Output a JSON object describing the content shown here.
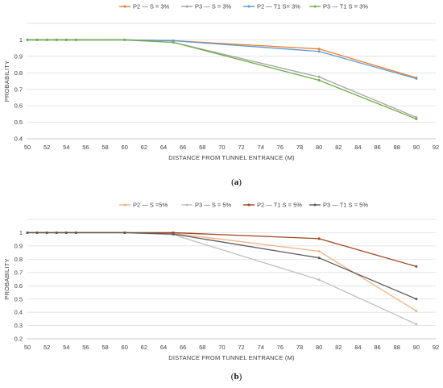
{
  "chart_data": [
    {
      "type": "line",
      "title": "",
      "caption": "(a)",
      "xlabel": "DISTANCE FROM TUNNEL ENTRANCE (M)",
      "ylabel": "PROBABILITY",
      "xlim": [
        50,
        92
      ],
      "ylim": [
        0.4,
        1.1
      ],
      "xticks": [
        50,
        52,
        54,
        56,
        58,
        60,
        62,
        64,
        66,
        68,
        70,
        72,
        74,
        76,
        78,
        80,
        82,
        84,
        86,
        88,
        90,
        92
      ],
      "yticks": [
        0.4,
        0.5,
        0.6,
        0.7,
        0.8,
        0.9,
        1
      ],
      "ytick_labels": [
        "0.4",
        "0.5",
        "0.6",
        "0.7",
        "0.8",
        "0.9",
        "1"
      ],
      "grid": true,
      "legend": "top",
      "series": [
        {
          "name": "P2 — S = 3%",
          "color": "#ed7d31",
          "x": [
            50,
            51,
            52,
            53,
            54,
            55,
            60,
            65,
            80,
            90
          ],
          "y": [
            1,
            1,
            1,
            1,
            1,
            1,
            1,
            0.995,
            0.945,
            0.77
          ]
        },
        {
          "name": "P3 — S = 3%",
          "color": "#a5a5a5",
          "x": [
            50,
            51,
            52,
            53,
            54,
            55,
            60,
            65,
            80,
            90
          ],
          "y": [
            1,
            1,
            1,
            1,
            1,
            1,
            1,
            0.985,
            0.775,
            0.53
          ]
        },
        {
          "name": "P2 — T1 S= 3%",
          "color": "#5b9bd5",
          "x": [
            50,
            51,
            52,
            53,
            54,
            55,
            60,
            65,
            80,
            90
          ],
          "y": [
            1,
            1,
            1,
            1,
            1,
            1,
            1,
            0.995,
            0.93,
            0.765
          ]
        },
        {
          "name": "P3 — T1 S = 3%",
          "color": "#70ad47",
          "x": [
            50,
            51,
            52,
            53,
            54,
            55,
            60,
            65,
            80,
            90
          ],
          "y": [
            1,
            1,
            1,
            1,
            1,
            1,
            1,
            0.985,
            0.755,
            0.52
          ]
        }
      ]
    },
    {
      "type": "line",
      "title": "",
      "caption": "(b)",
      "xlabel": "DISTANCE FROM TUNNEL ENTRANCE (M)",
      "ylabel": "PROBABILITY",
      "xlim": [
        50,
        92
      ],
      "ylim": [
        0.2,
        1.1
      ],
      "xticks": [
        50,
        52,
        54,
        56,
        58,
        60,
        62,
        64,
        66,
        68,
        70,
        72,
        74,
        76,
        78,
        80,
        82,
        84,
        86,
        88,
        90,
        92
      ],
      "yticks": [
        0.2,
        0.3,
        0.4,
        0.5,
        0.6,
        0.7,
        0.8,
        0.9,
        1
      ],
      "ytick_labels": [
        "0.2",
        "0.3",
        "0.4",
        "0.5",
        "0.6",
        "0.7",
        "0.8",
        "0.9",
        "1"
      ],
      "grid": true,
      "legend": "top",
      "series": [
        {
          "name": "P2 — S =5%",
          "color": "#f4b183",
          "x": [
            50,
            51,
            52,
            53,
            54,
            55,
            60,
            65,
            80,
            90
          ],
          "y": [
            1,
            1,
            1,
            1,
            1,
            1,
            1,
            0.995,
            0.86,
            0.41
          ]
        },
        {
          "name": "P3 — S = 5%",
          "color": "#bfbfbf",
          "x": [
            50,
            51,
            52,
            53,
            54,
            55,
            60,
            65,
            80,
            90
          ],
          "y": [
            1,
            1,
            1,
            1,
            1,
            1,
            1,
            0.985,
            0.645,
            0.31
          ]
        },
        {
          "name": "P2 — T1 S = 5%",
          "color": "#a0441c",
          "x": [
            50,
            51,
            52,
            53,
            54,
            55,
            60,
            65,
            80,
            90
          ],
          "y": [
            1,
            1,
            1,
            1,
            1,
            1,
            1,
            1,
            0.955,
            0.745
          ]
        },
        {
          "name": "P3 — T1 S = 5%",
          "color": "#595959",
          "x": [
            50,
            51,
            52,
            53,
            54,
            55,
            60,
            65,
            80,
            90
          ],
          "y": [
            1,
            1,
            1,
            1,
            1,
            1,
            1,
            0.99,
            0.81,
            0.5
          ]
        }
      ]
    }
  ]
}
